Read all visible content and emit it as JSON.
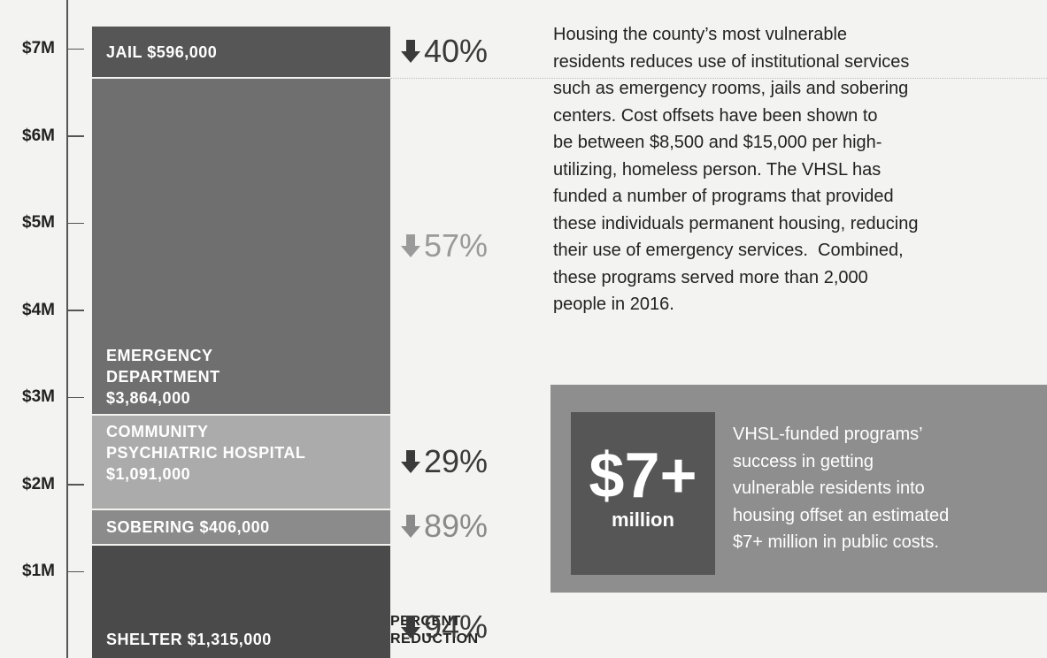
{
  "chart_data": {
    "type": "stacked-bar",
    "ylim": [
      0,
      7500000
    ],
    "yticks": [
      {
        "value": 1000000,
        "label": "$1M"
      },
      {
        "value": 2000000,
        "label": "$2M"
      },
      {
        "value": 3000000,
        "label": "$3M"
      },
      {
        "value": 4000000,
        "label": "$4M"
      },
      {
        "value": 5000000,
        "label": "$5M"
      },
      {
        "value": 6000000,
        "label": "$6M"
      },
      {
        "value": 7000000,
        "label": "$7M"
      }
    ],
    "series": [
      {
        "label": [
          "SHELTER"
        ],
        "values": [
          1315000
        ],
        "value_labels": [
          "$1,315,000"
        ],
        "color": "#4a4a4a",
        "reduction": 94,
        "reduction_label": "94%",
        "reduction_color": "#3a3a3a"
      },
      {
        "label": [
          "SOBERING"
        ],
        "values": [
          406000
        ],
        "value_labels": [
          "$406,000"
        ],
        "color": "#8b8b8b",
        "reduction": 89,
        "reduction_label": "89%",
        "reduction_color": "#8a8a8a"
      },
      {
        "label": [
          "COMMUNITY",
          "PSYCHIATRIC HOSPITAL"
        ],
        "values": [
          1091000
        ],
        "value_labels": [
          "$1,091,000"
        ],
        "color": "#ababab",
        "reduction": 29,
        "reduction_label": "29%",
        "reduction_color": "#3a3a3a"
      },
      {
        "label": [
          "EMERGENCY",
          "DEPARTMENT"
        ],
        "values": [
          3864000
        ],
        "value_labels": [
          "$3,864,000"
        ],
        "color": "#6f6f6f",
        "reduction": 57,
        "reduction_label": "57%",
        "reduction_color": "#9a9a9a"
      },
      {
        "label": [
          "JAIL"
        ],
        "values": [
          596000
        ],
        "value_labels": [
          "$596,000"
        ],
        "color": "#565656",
        "reduction": 40,
        "reduction_label": "40%",
        "reduction_color": "#3a3a3a"
      }
    ],
    "reduction_caption": [
      "PERCENT",
      "REDUCTION"
    ]
  },
  "paragraph": [
    "Housing the county’s most vulnerable",
    "residents reduces use of institutional services",
    "such as emergency rooms, jails and sobering",
    "centers. Cost offsets have been shown to",
    "be between $8,500 and $15,000 per high-",
    "utilizing, homeless person. The VHSL has",
    "funded a number of programs that provided",
    "these individuals permanent housing, reducing",
    "their use of emergency services.  Combined,",
    "these programs served more than 2,000",
    "people in 2016."
  ],
  "callout": {
    "figure": "$7+",
    "unit": "million",
    "text": [
      "VHSL-funded programs’",
      "success in getting",
      "vulnerable residents into",
      "housing offset an estimated",
      "$7+ million in public costs."
    ]
  }
}
